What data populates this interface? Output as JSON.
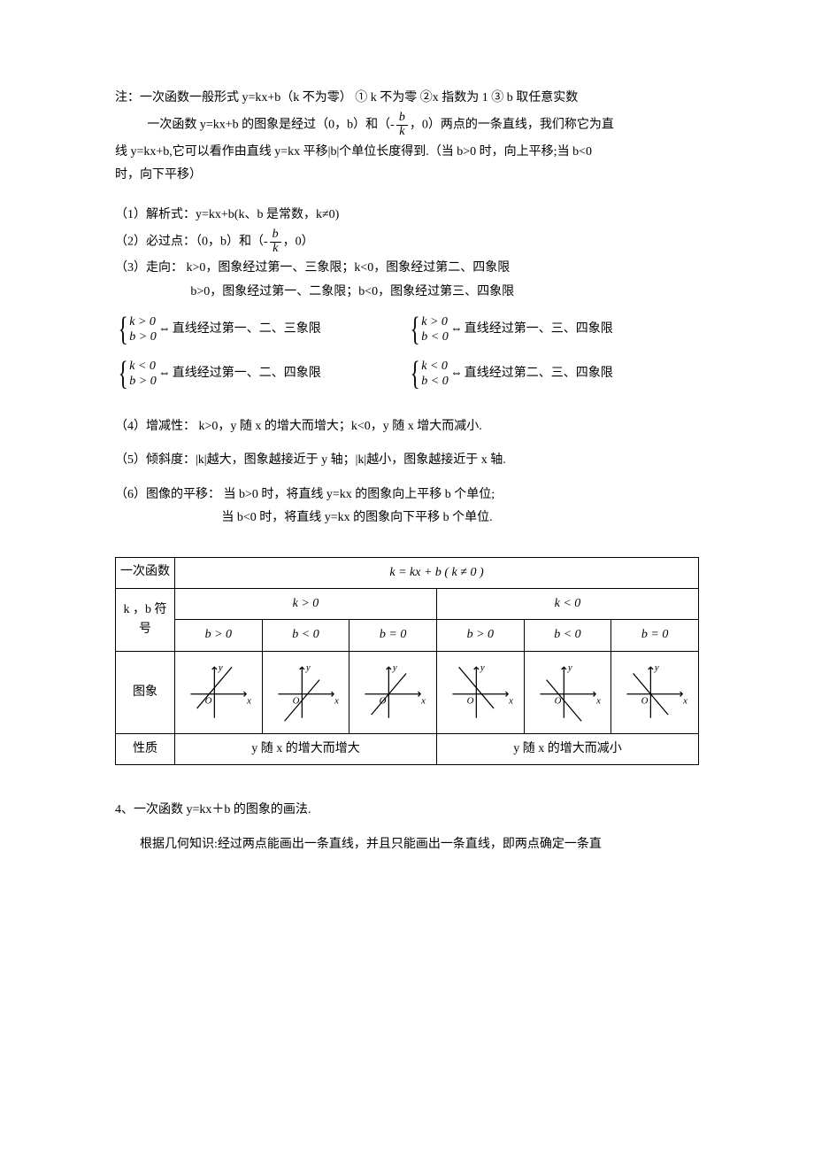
{
  "note": {
    "line1": "注：一次函数一般形式 y=kx+b（k 不为零）   ① k 不为零   ②x 指数为 1   ③ b 取任意实数",
    "line2a": "一次函数 y=kx+b 的图象是经过（0，b）和（-",
    "line2b": "，0）两点的一条直线，我们称它为直",
    "line3": "线 y=kx+b,它可以看作由直线 y=kx 平移|b|个单位长度得到.（当 b>0 时，向上平移;当 b<0",
    "line4": "时，向下平移）"
  },
  "frac": {
    "num": "b",
    "den": "k"
  },
  "items": {
    "i1": "（1）解析式：y=kx+b(k、b 是常数，k≠0)",
    "i2a": "（2）必过点：（0，b）和（-",
    "i2b": "，0）",
    "i3a": "（3）走向：  k>0，图象经过第一、三象限；k<0，图象经过第二、四象限",
    "i3b": "b>0，图象经过第一、二象限；b<0，图象经过第三、四象限",
    "i4": "（4）增减性：  k>0，y 随 x 的增大而增大；k<0，y 随 x 增大而减小.",
    "i5": "（5）倾斜度：|k|越大，图象越接近于 y 轴；|k|越小，图象越接近于 x 轴.",
    "i6a": "（6）图像的平移：  当 b>0 时，将直线 y=kx 的图象向上平移 b 个单位;",
    "i6b": "当 b<0 时，将直线 y=kx 的图象向下平移 b 个单位."
  },
  "conds": {
    "c1": {
      "a": "k > 0",
      "b": "b > 0",
      "txt": " 直线经过第一、二、三象限"
    },
    "c2": {
      "a": "k > 0",
      "b": "b < 0",
      "txt": " 直线经过第一、三、四象限"
    },
    "c3": {
      "a": "k < 0",
      "b": "b > 0",
      "txt": " 直线经过第一、二、四象限"
    },
    "c4": {
      "a": "k < 0",
      "b": "b < 0",
      "txt": " 直线经过第二、三、四象限"
    },
    "iff": "⇔"
  },
  "table": {
    "r1": "一次函数",
    "r1eq": "k = kx + b ( k ≠ 0 )",
    "r2": "k ，b 符号",
    "kpos": "k > 0",
    "kneg": "k < 0",
    "bpos": "b > 0",
    "bneg": "b < 0",
    "bzero": "b = 0",
    "r3": "图象",
    "r4": "性质",
    "p1": "y 随 x 的增大而增大",
    "p2": "y 随 x 的增大而减小",
    "axis_y": "y",
    "axis_x": "x",
    "origin": "O",
    "graphs": [
      {
        "slope": "pos",
        "intercept": 8
      },
      {
        "slope": "pos",
        "intercept": -8
      },
      {
        "slope": "pos",
        "intercept": 0
      },
      {
        "slope": "neg",
        "intercept": 8
      },
      {
        "slope": "neg",
        "intercept": -8
      },
      {
        "slope": "neg",
        "intercept": 0
      }
    ]
  },
  "footer": {
    "h": "4、一次函数 y=kx＋b 的图象的画法.",
    "p": "根据几何知识:经过两点能画出一条直线，并且只能画出一条直线，即两点确定一条直"
  }
}
